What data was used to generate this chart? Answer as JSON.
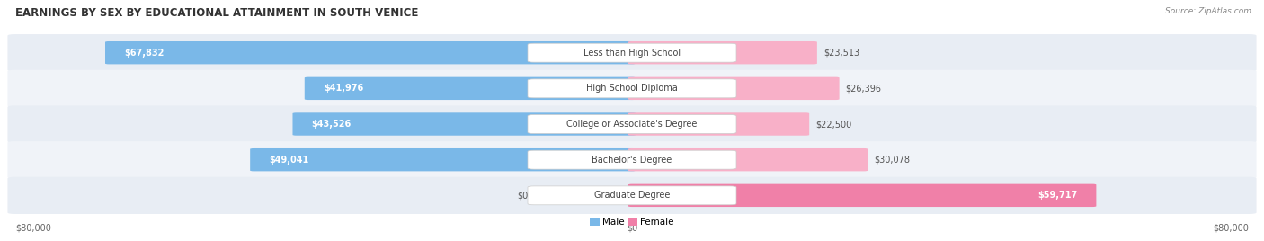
{
  "title": "EARNINGS BY SEX BY EDUCATIONAL ATTAINMENT IN SOUTH VENICE",
  "source": "Source: ZipAtlas.com",
  "categories": [
    "Less than High School",
    "High School Diploma",
    "College or Associate's Degree",
    "Bachelor's Degree",
    "Graduate Degree"
  ],
  "male_values": [
    67832,
    41976,
    43526,
    49041,
    0
  ],
  "female_values": [
    23513,
    26396,
    22500,
    30078,
    59717
  ],
  "male_labels": [
    "$67,832",
    "$41,976",
    "$43,526",
    "$49,041",
    "$0"
  ],
  "female_labels": [
    "$23,513",
    "$26,396",
    "$22,500",
    "$30,078",
    "$59,717"
  ],
  "male_color": "#7AB8E8",
  "male_color_light": "#A8D0F0",
  "female_color": "#F080A8",
  "female_color_light": "#F8B0C8",
  "row_bg_colors": [
    "#E8EDF4",
    "#F0F3F8",
    "#E8EDF4",
    "#F0F3F8",
    "#E8EDF4"
  ],
  "max_val": 80000,
  "background_color": "#FFFFFF",
  "title_fontsize": 8.5,
  "label_fontsize": 7,
  "source_fontsize": 6.5,
  "axis_label_fontsize": 7,
  "category_fontsize": 7,
  "axis_left_label": "$80,000",
  "axis_right_label": "$80,000",
  "axis_center_label": "$0"
}
